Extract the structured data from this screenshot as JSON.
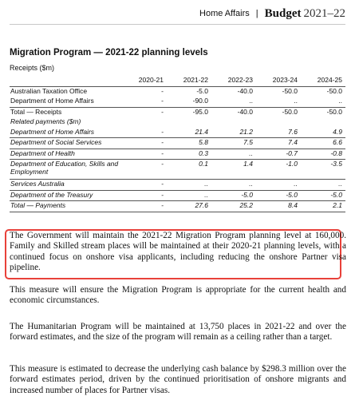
{
  "header": {
    "department": "Home Affairs",
    "separator": "|",
    "budget_label": "Budget",
    "year": "2021–22"
  },
  "title": "Migration Program — 2021-22 planning levels",
  "subtitle": "Receipts ($m)",
  "table": {
    "columns": [
      "",
      "2020-21",
      "2021-22",
      "2022-23",
      "2023-24",
      "2024-25"
    ],
    "receipts": [
      {
        "label": "Australian Taxation Office",
        "values": [
          "-",
          "-5.0",
          "-40.0",
          "-50.0",
          "-50.0"
        ]
      },
      {
        "label": "Department of Home Affairs",
        "values": [
          "-",
          "-90.0",
          "..",
          "..",
          ".."
        ]
      }
    ],
    "receipts_total": {
      "label": "Total — Receipts",
      "values": [
        "-",
        "-95.0",
        "-40.0",
        "-50.0",
        "-50.0"
      ]
    },
    "related_heading": "Related payments ($m)",
    "payments": [
      {
        "label": "Department of Home Affairs",
        "values": [
          "-",
          "21.4",
          "21.2",
          "7.6",
          "4.9"
        ]
      },
      {
        "label": "Department of Social Services",
        "values": [
          "-",
          "5.8",
          "7.5",
          "7.4",
          "6.6"
        ]
      },
      {
        "label": "Department of Health",
        "values": [
          "-",
          "0.3",
          "..",
          "-0.7",
          "-0.8"
        ]
      },
      {
        "label": "Department of Education, Skills and Employment",
        "values": [
          "-",
          "0.1",
          "1.4",
          "-1.0",
          "-3.5"
        ]
      },
      {
        "label": "Services Australia",
        "values": [
          "-",
          "..",
          "..",
          "..",
          ".."
        ]
      },
      {
        "label": "Department of the Treasury",
        "values": [
          "-",
          "..",
          "-5.0",
          "-5.0",
          "-5.0"
        ]
      }
    ],
    "payments_total": {
      "label": "Total — Payments",
      "values": [
        "-",
        "27.6",
        "25.2",
        "8.4",
        "2.1"
      ]
    }
  },
  "paragraphs": {
    "p1": "The Government will maintain the 2021-22 Migration Program planning level at 160,000. Family and Skilled stream places will be maintained at their 2020-21 planning levels, with a continued focus on onshore visa applicants, including reducing the onshore Partner visa pipeline.",
    "p2": "This measure will ensure the Migration Program is appropriate for the current health and economic circumstances.",
    "p3": "The Humanitarian Program will be maintained at 13,750 places in 2021-22 and over the forward estimates, and the size of the program will remain as a ceiling rather than a target.",
    "p4": "This measure is estimated to decrease the underlying cash balance by $298.3 million over the forward estimates period, driven by the continued prioritisation of onshore migrants and increased number of places for Partner visas."
  },
  "colors": {
    "highlight_border": "#e8413a",
    "rule": "#555555"
  }
}
